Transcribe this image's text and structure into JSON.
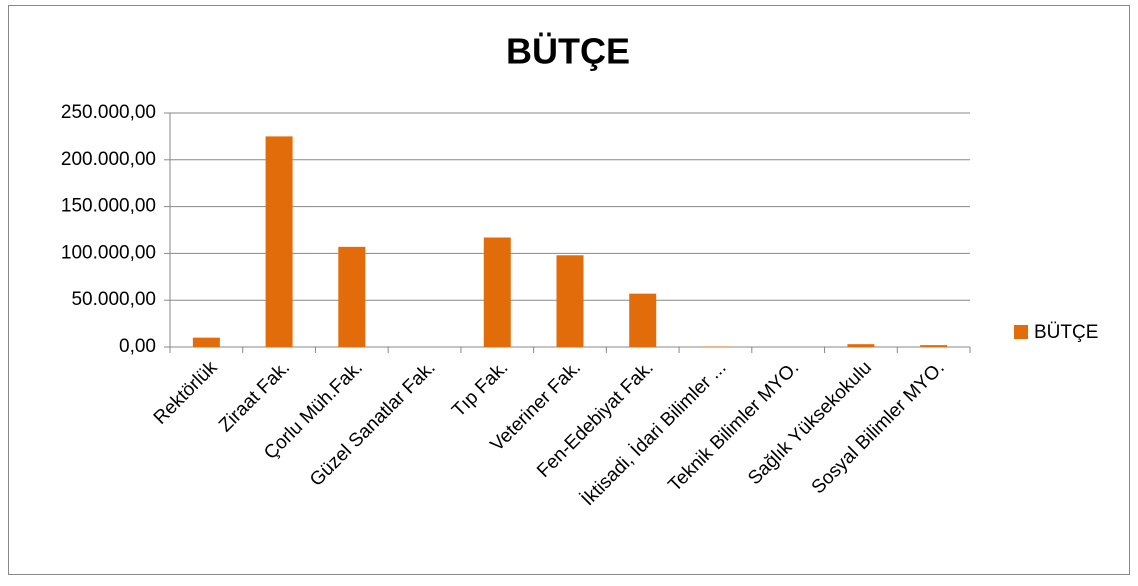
{
  "chart_data": {
    "type": "bar",
    "title": "BÜTÇE",
    "categories": [
      "Rektörlük",
      "Ziraat Fak.",
      "Çorlu Müh.Fak.",
      "Güzel Sanatlar Fak.",
      "Tıp Fak.",
      "Veteriner Fak.",
      "Fen-Edebiyat Fak.",
      "İktisadi, İdari Bilimler ...",
      "Teknik Bilimler MYO.",
      "Sağlık Yüksekokulu",
      "Sosyal Bilimler MYO."
    ],
    "series": [
      {
        "name": "BÜTÇE",
        "color": "#e36c0a",
        "values": [
          10000,
          225000,
          107000,
          0,
          117000,
          98000,
          57000,
          500,
          0,
          3000,
          2000
        ]
      }
    ],
    "ylim": [
      0,
      250000
    ],
    "yticks": [
      {
        "value": 0,
        "label": "0,00"
      },
      {
        "value": 50000,
        "label": "50.000,00"
      },
      {
        "value": 100000,
        "label": "100.000,00"
      },
      {
        "value": 150000,
        "label": "150.000,00"
      },
      {
        "value": 200000,
        "label": "200.000,00"
      },
      {
        "value": 250000,
        "label": "250.000,00"
      }
    ],
    "grid": true,
    "legend": "right"
  }
}
